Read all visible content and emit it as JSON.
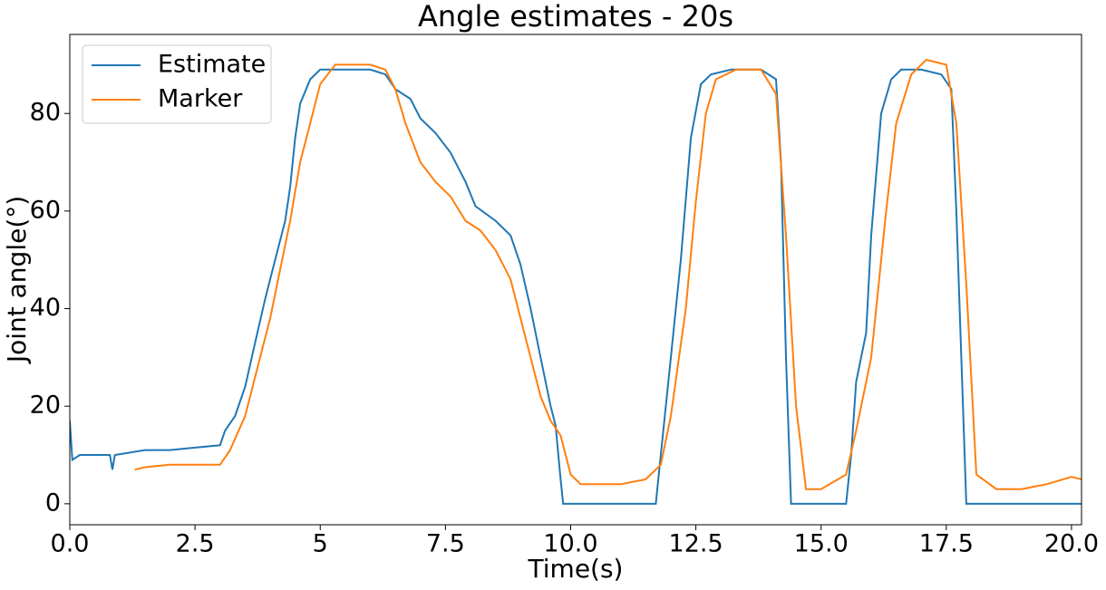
{
  "chart_data": {
    "type": "line",
    "title": "Angle estimates - 20s",
    "x_label": "Time(s)",
    "y_label": "Joint angle(°)",
    "xlim": [
      0,
      20.2
    ],
    "ylim": [
      -4.3,
      96.2
    ],
    "xticks": [
      {
        "value": 0,
        "label": "0.0"
      },
      2.5,
      5.0,
      7.5,
      {
        "value": 10,
        "label": "10.0"
      },
      12.5,
      {
        "value": 15,
        "label": "15.0"
      },
      17.5,
      {
        "value": 20,
        "label": "20.0"
      }
    ],
    "yticks": [
      0,
      20,
      40,
      60,
      80
    ],
    "legend": "upper-left",
    "grid": false,
    "series": [
      {
        "name": "Estimate",
        "color": "#1f77b4",
        "x": [
          0,
          0.05,
          0.2,
          0.5,
          0.8,
          0.85,
          0.9,
          1.5,
          2.0,
          2.5,
          3.0,
          3.1,
          3.3,
          3.5,
          3.7,
          3.9,
          4.1,
          4.3,
          4.4,
          4.5,
          4.6,
          4.8,
          5.0,
          5.5,
          6.0,
          6.3,
          6.5,
          6.8,
          7.0,
          7.3,
          7.6,
          7.9,
          8.1,
          8.5,
          8.8,
          9.0,
          9.2,
          9.4,
          9.6,
          9.7,
          9.8,
          9.85,
          11.7,
          11.8,
          12.0,
          12.2,
          12.4,
          12.6,
          12.8,
          13.2,
          13.8,
          14.1,
          14.2,
          14.3,
          14.4,
          15.5,
          15.6,
          15.7,
          15.9,
          16.0,
          16.2,
          16.4,
          16.6,
          17.0,
          17.4,
          17.6,
          17.7,
          17.8,
          17.9,
          20.2
        ],
        "values": [
          17,
          9,
          10,
          10,
          10,
          7,
          10,
          11,
          11,
          11.5,
          12,
          15,
          18,
          24,
          33,
          42,
          50,
          58,
          65,
          75,
          82,
          87,
          89,
          89,
          89,
          88,
          85,
          83,
          79,
          76,
          72,
          66,
          61,
          58,
          55,
          49,
          40,
          30,
          20,
          16,
          5,
          0,
          0,
          10,
          30,
          50,
          75,
          86,
          88,
          89,
          89,
          87,
          70,
          30,
          0,
          0,
          10,
          25,
          35,
          55,
          80,
          87,
          89,
          89,
          88,
          85,
          60,
          30,
          0,
          0
        ]
      },
      {
        "name": "Marker",
        "color": "#ff7f0e",
        "x": [
          1.3,
          1.5,
          2.0,
          2.5,
          3.0,
          3.2,
          3.5,
          3.8,
          4.0,
          4.2,
          4.4,
          4.6,
          4.8,
          5.0,
          5.3,
          5.6,
          6.0,
          6.3,
          6.5,
          6.7,
          7.0,
          7.3,
          7.6,
          7.9,
          8.2,
          8.5,
          8.8,
          9.0,
          9.2,
          9.4,
          9.6,
          9.8,
          10.0,
          10.2,
          11.0,
          11.5,
          11.8,
          12.0,
          12.3,
          12.5,
          12.7,
          12.9,
          13.3,
          13.8,
          14.1,
          14.3,
          14.5,
          14.7,
          15.0,
          15.5,
          15.7,
          16.0,
          16.3,
          16.5,
          16.8,
          17.1,
          17.5,
          17.7,
          17.9,
          18.1,
          18.5,
          19.0,
          19.5,
          20.0,
          20.2
        ],
        "values": [
          7,
          7.5,
          8,
          8,
          8,
          11,
          18,
          30,
          38,
          48,
          58,
          70,
          78,
          86,
          90,
          90,
          90,
          89,
          85,
          78,
          70,
          66,
          63,
          58,
          56,
          52,
          46,
          38,
          30,
          22,
          17,
          14,
          6,
          4,
          4,
          5,
          8,
          18,
          40,
          62,
          80,
          87,
          89,
          89,
          84,
          55,
          20,
          3,
          3,
          6,
          15,
          30,
          60,
          78,
          88,
          91,
          90,
          78,
          45,
          6,
          3,
          3,
          4,
          5.5,
          5
        ]
      }
    ]
  }
}
